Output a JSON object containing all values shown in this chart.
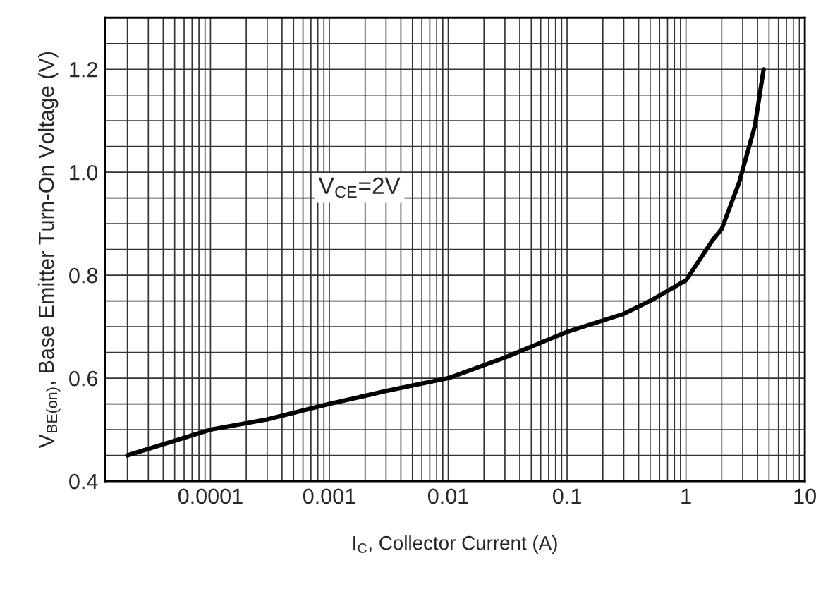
{
  "chart_data": {
    "type": "line",
    "xlabel": "I$_{C}$, Collector Current (A)",
    "ylabel": "V$_{BE(on)}$, Base Emitter Turn-On Voltage (V)",
    "annotations": [
      "V$_{CE}$=2V"
    ],
    "log": "x",
    "xlim": [
      1.3e-05,
      10
    ],
    "xticks": [
      {
        "value": 0.0001,
        "label": "0.0001"
      },
      {
        "value": 0.001,
        "label": "0.001"
      },
      {
        "value": 0.01,
        "label": "0.01"
      },
      {
        "value": 0.1,
        "label": "0.1"
      },
      {
        "value": 1,
        "label": "1"
      },
      {
        "value": 10,
        "label": "10"
      }
    ],
    "ylim": [
      0.4,
      1.3
    ],
    "yticks": [
      0.4,
      0.6,
      0.8,
      {
        "value": 1.0,
        "label": "1.0"
      },
      1.2
    ],
    "grid": true,
    "marker": "none",
    "line_style": "solid",
    "series": [
      {
        "color": "#000000",
        "x": [
          2e-05,
          0.0001,
          0.0003,
          0.001,
          0.003,
          0.01,
          0.03,
          0.1,
          0.3,
          0.5,
          1,
          1.7,
          2,
          2.8,
          3.8,
          4.5
        ],
        "values": [
          0.45,
          0.5,
          0.52,
          0.55,
          0.575,
          0.6,
          0.64,
          0.69,
          0.725,
          0.75,
          0.79,
          0.87,
          0.89,
          0.98,
          1.09,
          1.2
        ]
      }
    ]
  }
}
